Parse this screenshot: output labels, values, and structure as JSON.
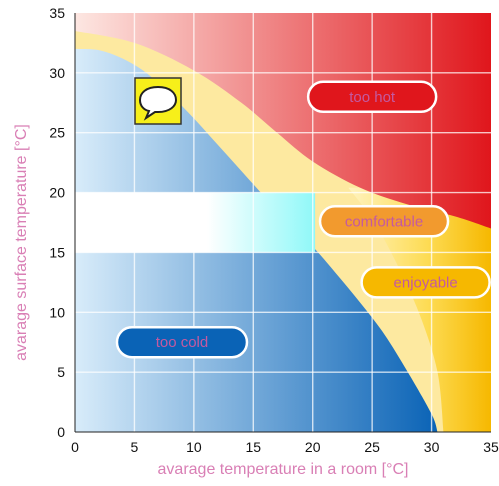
{
  "colors": {
    "axis_label": "#d97fb5",
    "zone_text": "#c45aa0",
    "hot_dark": "#e0161c",
    "hot_light": "#fde7e2",
    "cold_dark": "#0a63b6",
    "cold_light": "#d8ecfa",
    "comfortable_band": "#fde9a0",
    "enjoyable_fill": "#f6b800",
    "cyan": "#8ff8f8"
  },
  "chart_data": {
    "type": "area",
    "xlabel": "avarage temperature in a room [°C]",
    "ylabel": "avarage surface temperature [°C]",
    "xlim": [
      0,
      35
    ],
    "ylim": [
      0,
      35
    ],
    "x_ticks": [
      0,
      5,
      10,
      15,
      20,
      25,
      30,
      35
    ],
    "y_ticks": [
      0,
      5,
      10,
      15,
      20,
      25,
      30,
      35
    ],
    "grid": true,
    "boundaries": {
      "cold_upper": [
        [
          0,
          32
        ],
        [
          2,
          31.9
        ],
        [
          4,
          31.2
        ],
        [
          6,
          30
        ],
        [
          8,
          28.2
        ],
        [
          10,
          26.2
        ],
        [
          12,
          24
        ],
        [
          14,
          21.8
        ],
        [
          16,
          19.6
        ],
        [
          18,
          17.5
        ],
        [
          20,
          15.5
        ],
        [
          22,
          13.2
        ],
        [
          24,
          10.8
        ],
        [
          26,
          8.2
        ],
        [
          28,
          5
        ],
        [
          30,
          1.5
        ],
        [
          30.5,
          0
        ]
      ],
      "hot_lower": [
        [
          0,
          33.5
        ],
        [
          5,
          32.5
        ],
        [
          10,
          30.2
        ],
        [
          14,
          27.5
        ],
        [
          17,
          25
        ],
        [
          20,
          22.6
        ],
        [
          24,
          20.4
        ],
        [
          28,
          19
        ],
        [
          32,
          18
        ],
        [
          35,
          17
        ]
      ]
    },
    "enjoyable_right_boundary": [
      [
        23,
        20.4
      ],
      [
        25,
        17.8
      ],
      [
        27,
        14.2
      ],
      [
        29,
        9.8
      ],
      [
        30.5,
        5
      ],
      [
        31,
        0
      ]
    ],
    "zones": [
      {
        "label": "too hot",
        "x": 25,
        "y": 28
      },
      {
        "label": "comfortable",
        "x": 26,
        "y": 17.6
      },
      {
        "label": "enjoyable",
        "x": 29.5,
        "y": 12.5
      },
      {
        "label": "too cold",
        "x": 9,
        "y": 7.5
      }
    ]
  }
}
